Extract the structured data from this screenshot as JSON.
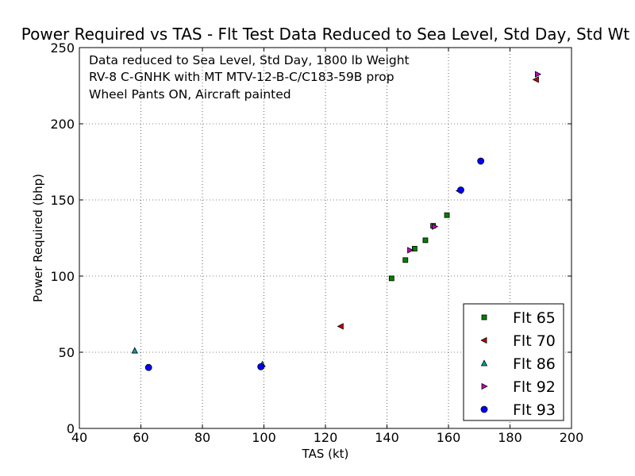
{
  "chart_data": {
    "type": "scatter",
    "title": "Power Required vs TAS - Flt Test Data Reduced to Sea Level, Std Day, Std Wt",
    "xlabel": "TAS (kt)",
    "ylabel": "Power Required (bhp)",
    "xlim": [
      40,
      200
    ],
    "ylim": [
      0,
      250
    ],
    "xticks": [
      "40",
      "60",
      "80",
      "100",
      "120",
      "140",
      "160",
      "180",
      "200"
    ],
    "yticks": [
      "0",
      "50",
      "100",
      "150",
      "200",
      "250"
    ],
    "grid": true,
    "legend_position": "lower-right",
    "annotations": [
      "Data reduced to Sea Level, Std Day, 1800 lb Weight",
      "RV-8 C-GNHK with MT MTV-12-B-C/C183-59B prop",
      "Wheel Pants ON, Aircraft painted"
    ],
    "series": [
      {
        "name": "Flt 65",
        "marker": "square",
        "color": "#008000",
        "points": [
          [
            141.5,
            98.5
          ],
          [
            146,
            110.5
          ],
          [
            149,
            118
          ],
          [
            152.5,
            123.5
          ],
          [
            155,
            133
          ],
          [
            159.5,
            140
          ]
        ]
      },
      {
        "name": "Flt 70",
        "marker": "triangle-left",
        "color": "#c00000",
        "points": [
          [
            125,
            67
          ],
          [
            163.5,
            156
          ],
          [
            188.5,
            229
          ]
        ]
      },
      {
        "name": "Flt 86",
        "marker": "triangle-up",
        "color": "#00a0a0",
        "points": [
          [
            58,
            51
          ],
          [
            99.5,
            42
          ]
        ]
      },
      {
        "name": "Flt 92",
        "marker": "triangle-right",
        "color": "#c000c0",
        "points": [
          [
            147.5,
            117
          ],
          [
            155.5,
            132.5
          ],
          [
            189,
            232.5
          ]
        ]
      },
      {
        "name": "Flt 93",
        "marker": "circle",
        "color": "#0000ff",
        "points": [
          [
            62.5,
            40
          ],
          [
            99,
            40.5
          ],
          [
            164,
            156.5
          ],
          [
            170.5,
            175.5
          ]
        ]
      }
    ]
  }
}
